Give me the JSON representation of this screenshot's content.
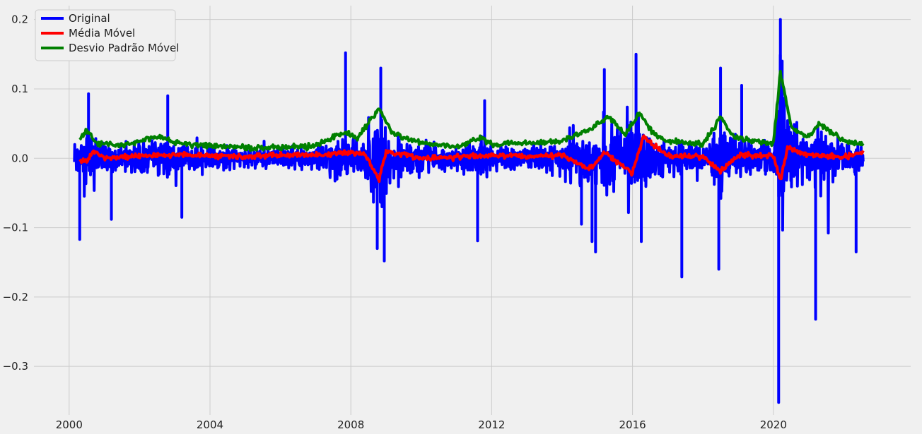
{
  "chart_data": {
    "type": "line",
    "title": "",
    "xlabel": "",
    "ylabel": "",
    "xlim": [
      1999.0,
      2023.9
    ],
    "ylim": [
      -0.37,
      0.22
    ],
    "xticks": [
      2000,
      2004,
      2008,
      2012,
      2016,
      2020
    ],
    "xtick_labels": [
      "2000",
      "2004",
      "2008",
      "2012",
      "2016",
      "2020"
    ],
    "yticks": [
      0.2,
      0.1,
      0.0,
      -0.1,
      -0.2,
      -0.3
    ],
    "ytick_labels": [
      "0.2",
      "0.1",
      "0.0",
      "−0.1",
      "−0.2",
      "−0.3"
    ],
    "grid": true,
    "legend_position": "top-left",
    "x_range": [
      2000.15,
      2022.55
    ],
    "series": [
      {
        "name": "Original",
        "color": "#0000ff",
        "description": "daily returns (approximate extremes)",
        "spikes": [
          [
            2000.3,
            -0.117
          ],
          [
            2000.55,
            0.093
          ],
          [
            2001.2,
            -0.088
          ],
          [
            2003.2,
            -0.085
          ],
          [
            2002.8,
            0.09
          ],
          [
            2007.85,
            0.152
          ],
          [
            2008.85,
            0.13
          ],
          [
            2008.75,
            -0.13
          ],
          [
            2008.95,
            -0.148
          ],
          [
            2011.6,
            -0.119
          ],
          [
            2011.8,
            0.083
          ],
          [
            2014.55,
            -0.095
          ],
          [
            2014.85,
            -0.12
          ],
          [
            2014.95,
            -0.135
          ],
          [
            2015.2,
            0.128
          ],
          [
            2016.1,
            0.15
          ],
          [
            2016.25,
            -0.12
          ],
          [
            2017.4,
            -0.171
          ],
          [
            2018.45,
            -0.16
          ],
          [
            2018.5,
            0.13
          ],
          [
            2019.1,
            0.105
          ],
          [
            2020.15,
            -0.352
          ],
          [
            2020.2,
            0.2
          ],
          [
            2020.25,
            0.14
          ],
          [
            2021.2,
            -0.232
          ],
          [
            2022.35,
            -0.135
          ]
        ]
      },
      {
        "name": "Média Móvel",
        "color": "#ff0000",
        "description": "rolling mean, approximately within ±0.03",
        "points": [
          [
            2000.3,
            0.0
          ],
          [
            2000.5,
            -0.005
          ],
          [
            2000.7,
            0.01
          ],
          [
            2001.0,
            0.0
          ],
          [
            2002.0,
            0.003
          ],
          [
            2003.0,
            0.006
          ],
          [
            2004.0,
            0.004
          ],
          [
            2005.0,
            0.002
          ],
          [
            2006.0,
            0.005
          ],
          [
            2007.0,
            0.004
          ],
          [
            2007.8,
            0.008
          ],
          [
            2008.4,
            0.006
          ],
          [
            2008.8,
            -0.03
          ],
          [
            2009.0,
            0.01
          ],
          [
            2010.0,
            0.0
          ],
          [
            2011.0,
            0.002
          ],
          [
            2012.0,
            0.004
          ],
          [
            2013.0,
            0.003
          ],
          [
            2014.0,
            0.005
          ],
          [
            2014.8,
            -0.015
          ],
          [
            2015.2,
            0.008
          ],
          [
            2016.0,
            -0.02
          ],
          [
            2016.3,
            0.03
          ],
          [
            2017.0,
            0.004
          ],
          [
            2018.0,
            0.002
          ],
          [
            2018.5,
            -0.02
          ],
          [
            2019.0,
            0.005
          ],
          [
            2020.0,
            0.003
          ],
          [
            2020.2,
            -0.03
          ],
          [
            2020.4,
            0.015
          ],
          [
            2021.0,
            0.005
          ],
          [
            2022.0,
            0.002
          ],
          [
            2022.55,
            0.008
          ]
        ]
      },
      {
        "name": "Desvio Padrão Móvel",
        "color": "#008000",
        "description": "rolling standard deviation",
        "points": [
          [
            2000.3,
            0.028
          ],
          [
            2000.5,
            0.04
          ],
          [
            2000.8,
            0.022
          ],
          [
            2001.5,
            0.018
          ],
          [
            2002.0,
            0.025
          ],
          [
            2002.6,
            0.032
          ],
          [
            2003.0,
            0.022
          ],
          [
            2004.0,
            0.018
          ],
          [
            2005.0,
            0.015
          ],
          [
            2006.0,
            0.016
          ],
          [
            2007.0,
            0.018
          ],
          [
            2007.8,
            0.038
          ],
          [
            2008.2,
            0.03
          ],
          [
            2008.8,
            0.072
          ],
          [
            2009.2,
            0.035
          ],
          [
            2010.0,
            0.022
          ],
          [
            2011.0,
            0.016
          ],
          [
            2011.7,
            0.03
          ],
          [
            2012.0,
            0.02
          ],
          [
            2013.0,
            0.022
          ],
          [
            2014.0,
            0.025
          ],
          [
            2014.9,
            0.045
          ],
          [
            2015.3,
            0.06
          ],
          [
            2015.8,
            0.035
          ],
          [
            2016.2,
            0.065
          ],
          [
            2016.6,
            0.035
          ],
          [
            2017.0,
            0.025
          ],
          [
            2018.0,
            0.02
          ],
          [
            2018.5,
            0.06
          ],
          [
            2018.9,
            0.03
          ],
          [
            2019.5,
            0.025
          ],
          [
            2020.0,
            0.02
          ],
          [
            2020.2,
            0.125
          ],
          [
            2020.5,
            0.045
          ],
          [
            2021.0,
            0.03
          ],
          [
            2021.3,
            0.05
          ],
          [
            2022.0,
            0.025
          ],
          [
            2022.55,
            0.02
          ]
        ]
      }
    ]
  }
}
